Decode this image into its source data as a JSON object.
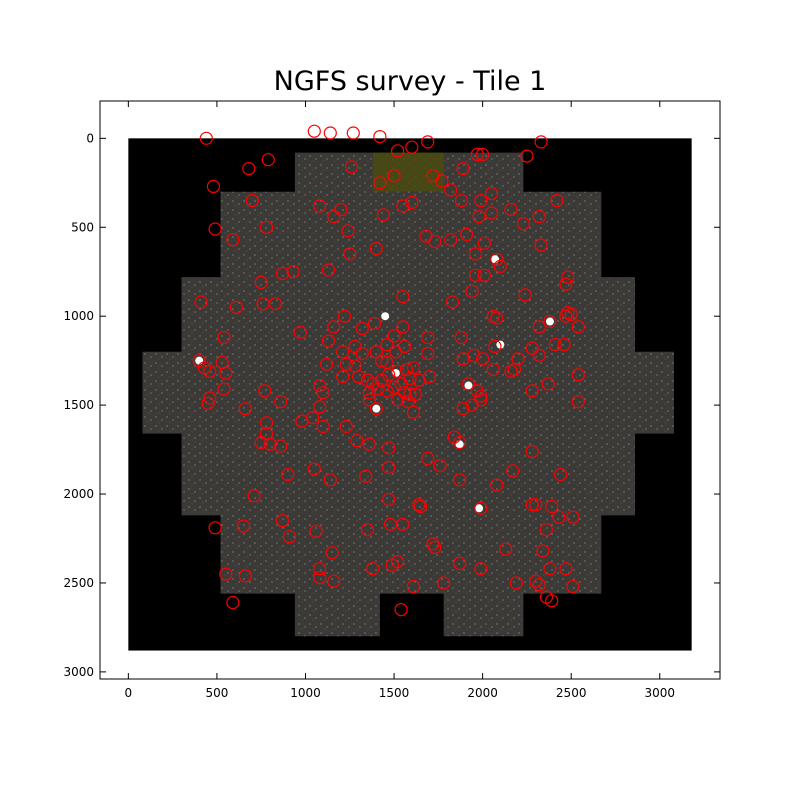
{
  "chart_data": {
    "type": "scatter",
    "title": "NGFS survey - Tile 1",
    "xlabel": "",
    "ylabel": "",
    "xlim": [
      -160,
      3340
    ],
    "ylim": [
      3040,
      -210
    ],
    "y_inverted": true,
    "x_ticks": [
      0,
      500,
      1000,
      1500,
      2000,
      2500,
      3000
    ],
    "y_ticks": [
      0,
      500,
      1000,
      1500,
      2000,
      2500,
      3000
    ],
    "x_tick_labels": [
      "0",
      "500",
      "1000",
      "1500",
      "2000",
      "2500",
      "3000"
    ],
    "y_tick_labels": [
      "0",
      "500",
      "1000",
      "1500",
      "2000",
      "2500",
      "3000"
    ],
    "grid": false,
    "background_image": "NGFS tile mosaic (grey star field on black)",
    "image_extent": {
      "x": [
        0,
        3180
      ],
      "y": [
        0,
        2880
      ]
    },
    "marker": {
      "shape": "open-circle",
      "color": "#ff0000"
    },
    "footprint_polygon": [
      [
        940,
        80
      ],
      [
        2230,
        80
      ],
      [
        2230,
        300
      ],
      [
        2670,
        300
      ],
      [
        2670,
        780
      ],
      [
        2860,
        780
      ],
      [
        2860,
        1200
      ],
      [
        3080,
        1200
      ],
      [
        3080,
        1660
      ],
      [
        2860,
        1660
      ],
      [
        2860,
        2120
      ],
      [
        2670,
        2120
      ],
      [
        2670,
        2560
      ],
      [
        2230,
        2560
      ],
      [
        2230,
        2800
      ],
      [
        1780,
        2800
      ],
      [
        1780,
        2560
      ],
      [
        1420,
        2560
      ],
      [
        1420,
        2800
      ],
      [
        940,
        2800
      ],
      [
        940,
        2560
      ],
      [
        520,
        2560
      ],
      [
        520,
        2120
      ],
      [
        300,
        2120
      ],
      [
        300,
        1660
      ],
      [
        80,
        1660
      ],
      [
        80,
        1200
      ],
      [
        300,
        1200
      ],
      [
        300,
        780
      ],
      [
        520,
        780
      ],
      [
        520,
        300
      ],
      [
        940,
        300
      ]
    ],
    "bright_sources": [
      [
        400,
        1250
      ],
      [
        2380,
        1030
      ],
      [
        2070,
        680
      ],
      [
        1920,
        1390
      ],
      [
        1510,
        1320
      ],
      [
        1980,
        2080
      ],
      [
        1870,
        1720
      ],
      [
        1400,
        1520
      ],
      [
        2100,
        1160
      ],
      [
        1450,
        1000
      ]
    ],
    "points": [
      [
        440,
        0
      ],
      [
        1050,
        -40
      ],
      [
        1140,
        -30
      ],
      [
        1270,
        -30
      ],
      [
        1420,
        -10
      ],
      [
        1690,
        20
      ],
      [
        2330,
        20
      ],
      [
        1520,
        70
      ],
      [
        1600,
        50
      ],
      [
        1970,
        90
      ],
      [
        2000,
        90
      ],
      [
        2250,
        100
      ],
      [
        790,
        120
      ],
      [
        680,
        170
      ],
      [
        1260,
        160
      ],
      [
        1500,
        210
      ],
      [
        1720,
        210
      ],
      [
        1770,
        240
      ],
      [
        1890,
        170
      ],
      [
        480,
        270
      ],
      [
        1420,
        250
      ],
      [
        1820,
        290
      ],
      [
        700,
        350
      ],
      [
        1080,
        380
      ],
      [
        1160,
        440
      ],
      [
        1200,
        400
      ],
      [
        1600,
        360
      ],
      [
        1550,
        380
      ],
      [
        1880,
        350
      ],
      [
        1990,
        350
      ],
      [
        2050,
        310
      ],
      [
        2160,
        400
      ],
      [
        2420,
        350
      ],
      [
        490,
        510
      ],
      [
        1440,
        430
      ],
      [
        1980,
        440
      ],
      [
        2050,
        420
      ],
      [
        2320,
        440
      ],
      [
        590,
        570
      ],
      [
        780,
        500
      ],
      [
        1240,
        520
      ],
      [
        1400,
        620
      ],
      [
        1250,
        650
      ],
      [
        1680,
        550
      ],
      [
        1730,
        580
      ],
      [
        1820,
        570
      ],
      [
        1910,
        540
      ],
      [
        2010,
        590
      ],
      [
        1960,
        650
      ],
      [
        2080,
        680
      ],
      [
        2230,
        480
      ],
      [
        2330,
        600
      ],
      [
        2100,
        720
      ],
      [
        750,
        810
      ],
      [
        870,
        760
      ],
      [
        930,
        750
      ],
      [
        1130,
        740
      ],
      [
        1960,
        770
      ],
      [
        2010,
        770
      ],
      [
        2480,
        780
      ],
      [
        2470,
        820
      ],
      [
        1940,
        860
      ],
      [
        2240,
        880
      ],
      [
        410,
        920
      ],
      [
        610,
        950
      ],
      [
        830,
        930
      ],
      [
        760,
        930
      ],
      [
        1550,
        890
      ],
      [
        1830,
        920
      ],
      [
        1220,
        1000
      ],
      [
        1160,
        1060
      ],
      [
        1320,
        1070
      ],
      [
        1390,
        1040
      ],
      [
        1550,
        1060
      ],
      [
        1690,
        1120
      ],
      [
        2060,
        1000
      ],
      [
        2080,
        1010
      ],
      [
        2320,
        1060
      ],
      [
        2380,
        1030
      ],
      [
        2470,
        1000
      ],
      [
        2480,
        980
      ],
      [
        2500,
        990
      ],
      [
        2540,
        1060
      ],
      [
        540,
        1120
      ],
      [
        970,
        1090
      ],
      [
        1500,
        1110
      ],
      [
        1560,
        1170
      ],
      [
        1130,
        1140
      ],
      [
        1280,
        1170
      ],
      [
        1460,
        1160
      ],
      [
        1880,
        1120
      ],
      [
        2070,
        1170
      ],
      [
        2280,
        1180
      ],
      [
        2410,
        1160
      ],
      [
        2460,
        1160
      ],
      [
        1210,
        1200
      ],
      [
        1320,
        1210
      ],
      [
        1400,
        1200
      ],
      [
        1510,
        1200
      ],
      [
        1690,
        1210
      ],
      [
        1890,
        1240
      ],
      [
        2000,
        1240
      ],
      [
        2200,
        1240
      ],
      [
        1950,
        1220
      ],
      [
        400,
        1250
      ],
      [
        430,
        1290
      ],
      [
        460,
        1310
      ],
      [
        530,
        1260
      ],
      [
        550,
        1320
      ],
      [
        1120,
        1270
      ],
      [
        1230,
        1270
      ],
      [
        1280,
        1280
      ],
      [
        1430,
        1250
      ],
      [
        1460,
        1260
      ],
      [
        1520,
        1310
      ],
      [
        1570,
        1300
      ],
      [
        1610,
        1290
      ],
      [
        2320,
        1220
      ],
      [
        2060,
        1300
      ],
      [
        2160,
        1310
      ],
      [
        2180,
        1300
      ],
      [
        2540,
        1330
      ],
      [
        1210,
        1340
      ],
      [
        1300,
        1340
      ],
      [
        1350,
        1360
      ],
      [
        1380,
        1380
      ],
      [
        1430,
        1360
      ],
      [
        1470,
        1330
      ],
      [
        1540,
        1380
      ],
      [
        1590,
        1350
      ],
      [
        1640,
        1360
      ],
      [
        1700,
        1340
      ],
      [
        1920,
        1380
      ],
      [
        2370,
        1380
      ],
      [
        1080,
        1390
      ],
      [
        770,
        1420
      ],
      [
        540,
        1410
      ],
      [
        1360,
        1430
      ],
      [
        1410,
        1410
      ],
      [
        1460,
        1420
      ],
      [
        1500,
        1400
      ],
      [
        1560,
        1430
      ],
      [
        1590,
        1440
      ],
      [
        1620,
        1440
      ],
      [
        1970,
        1420
      ],
      [
        1990,
        1450
      ],
      [
        2280,
        1420
      ],
      [
        460,
        1460
      ],
      [
        1100,
        1430
      ],
      [
        1360,
        1470
      ],
      [
        1520,
        1470
      ],
      [
        1580,
        1480
      ],
      [
        450,
        1490
      ],
      [
        660,
        1520
      ],
      [
        860,
        1480
      ],
      [
        1080,
        1510
      ],
      [
        1890,
        1520
      ],
      [
        1940,
        1500
      ],
      [
        1990,
        1470
      ],
      [
        2540,
        1480
      ],
      [
        1400,
        1520
      ],
      [
        1040,
        1570
      ],
      [
        980,
        1590
      ],
      [
        1100,
        1620
      ],
      [
        1230,
        1620
      ],
      [
        1610,
        1540
      ],
      [
        780,
        1600
      ],
      [
        780,
        1660
      ],
      [
        750,
        1710
      ],
      [
        800,
        1720
      ],
      [
        860,
        1730
      ],
      [
        1290,
        1700
      ],
      [
        1360,
        1720
      ],
      [
        1470,
        1740
      ],
      [
        1840,
        1680
      ],
      [
        1870,
        1710
      ],
      [
        2280,
        1760
      ],
      [
        1690,
        1800
      ],
      [
        1050,
        1860
      ],
      [
        1140,
        1920
      ],
      [
        1340,
        1900
      ],
      [
        1470,
        1850
      ],
      [
        1760,
        1840
      ],
      [
        900,
        1890
      ],
      [
        2170,
        1870
      ],
      [
        2440,
        1890
      ],
      [
        2080,
        1950
      ],
      [
        1870,
        1920
      ],
      [
        710,
        2010
      ],
      [
        1470,
        2030
      ],
      [
        1640,
        2060
      ],
      [
        1650,
        2070
      ],
      [
        1990,
        2080
      ],
      [
        2280,
        2060
      ],
      [
        2300,
        2060
      ],
      [
        2390,
        2070
      ],
      [
        2430,
        2130
      ],
      [
        2510,
        2130
      ],
      [
        490,
        2190
      ],
      [
        650,
        2180
      ],
      [
        870,
        2150
      ],
      [
        1060,
        2210
      ],
      [
        1350,
        2200
      ],
      [
        1480,
        2170
      ],
      [
        1550,
        2170
      ],
      [
        2360,
        2200
      ],
      [
        910,
        2240
      ],
      [
        1720,
        2280
      ],
      [
        1730,
        2300
      ],
      [
        1150,
        2330
      ],
      [
        2130,
        2310
      ],
      [
        2340,
        2320
      ],
      [
        1520,
        2380
      ],
      [
        1490,
        2400
      ],
      [
        1080,
        2420
      ],
      [
        1380,
        2420
      ],
      [
        1990,
        2420
      ],
      [
        2380,
        2420
      ],
      [
        2470,
        2420
      ],
      [
        550,
        2450
      ],
      [
        660,
        2460
      ],
      [
        1080,
        2470
      ],
      [
        1160,
        2490
      ],
      [
        1610,
        2520
      ],
      [
        1780,
        2500
      ],
      [
        2190,
        2500
      ],
      [
        2300,
        2490
      ],
      [
        2320,
        2510
      ],
      [
        2360,
        2580
      ],
      [
        2390,
        2600
      ],
      [
        2510,
        2520
      ],
      [
        590,
        2610
      ],
      [
        1540,
        2650
      ],
      [
        1870,
        2390
      ]
    ]
  }
}
